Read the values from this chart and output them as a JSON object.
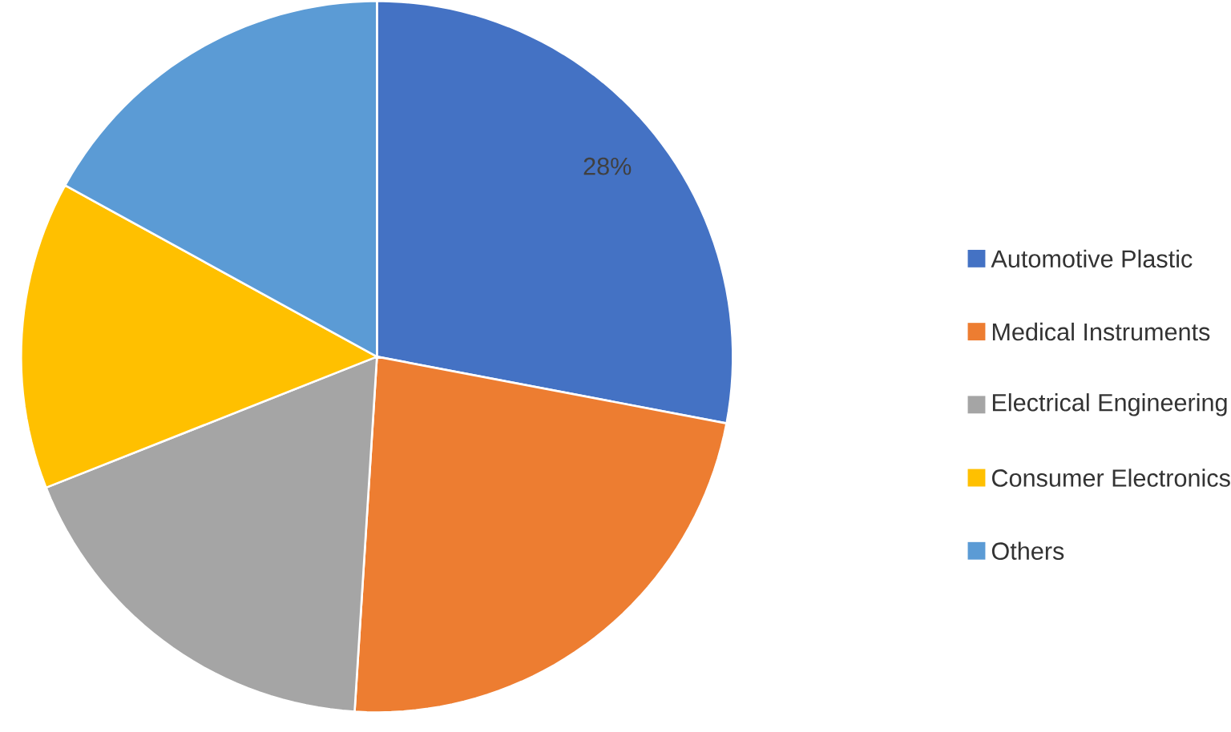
{
  "chart_data": {
    "type": "pie",
    "categories": [
      "Automotive Plastic",
      "Medical Instruments",
      "Electrical Engineering",
      "Consumer Electronics",
      "Others"
    ],
    "values": [
      28,
      23,
      18,
      14,
      17
    ],
    "colors": [
      "#4472c4",
      "#ed7d31",
      "#a5a5a5",
      "#ffc000",
      "#5b9bd5"
    ],
    "value_labels": [
      "28%",
      null,
      null,
      null,
      null
    ],
    "legend": "right"
  }
}
